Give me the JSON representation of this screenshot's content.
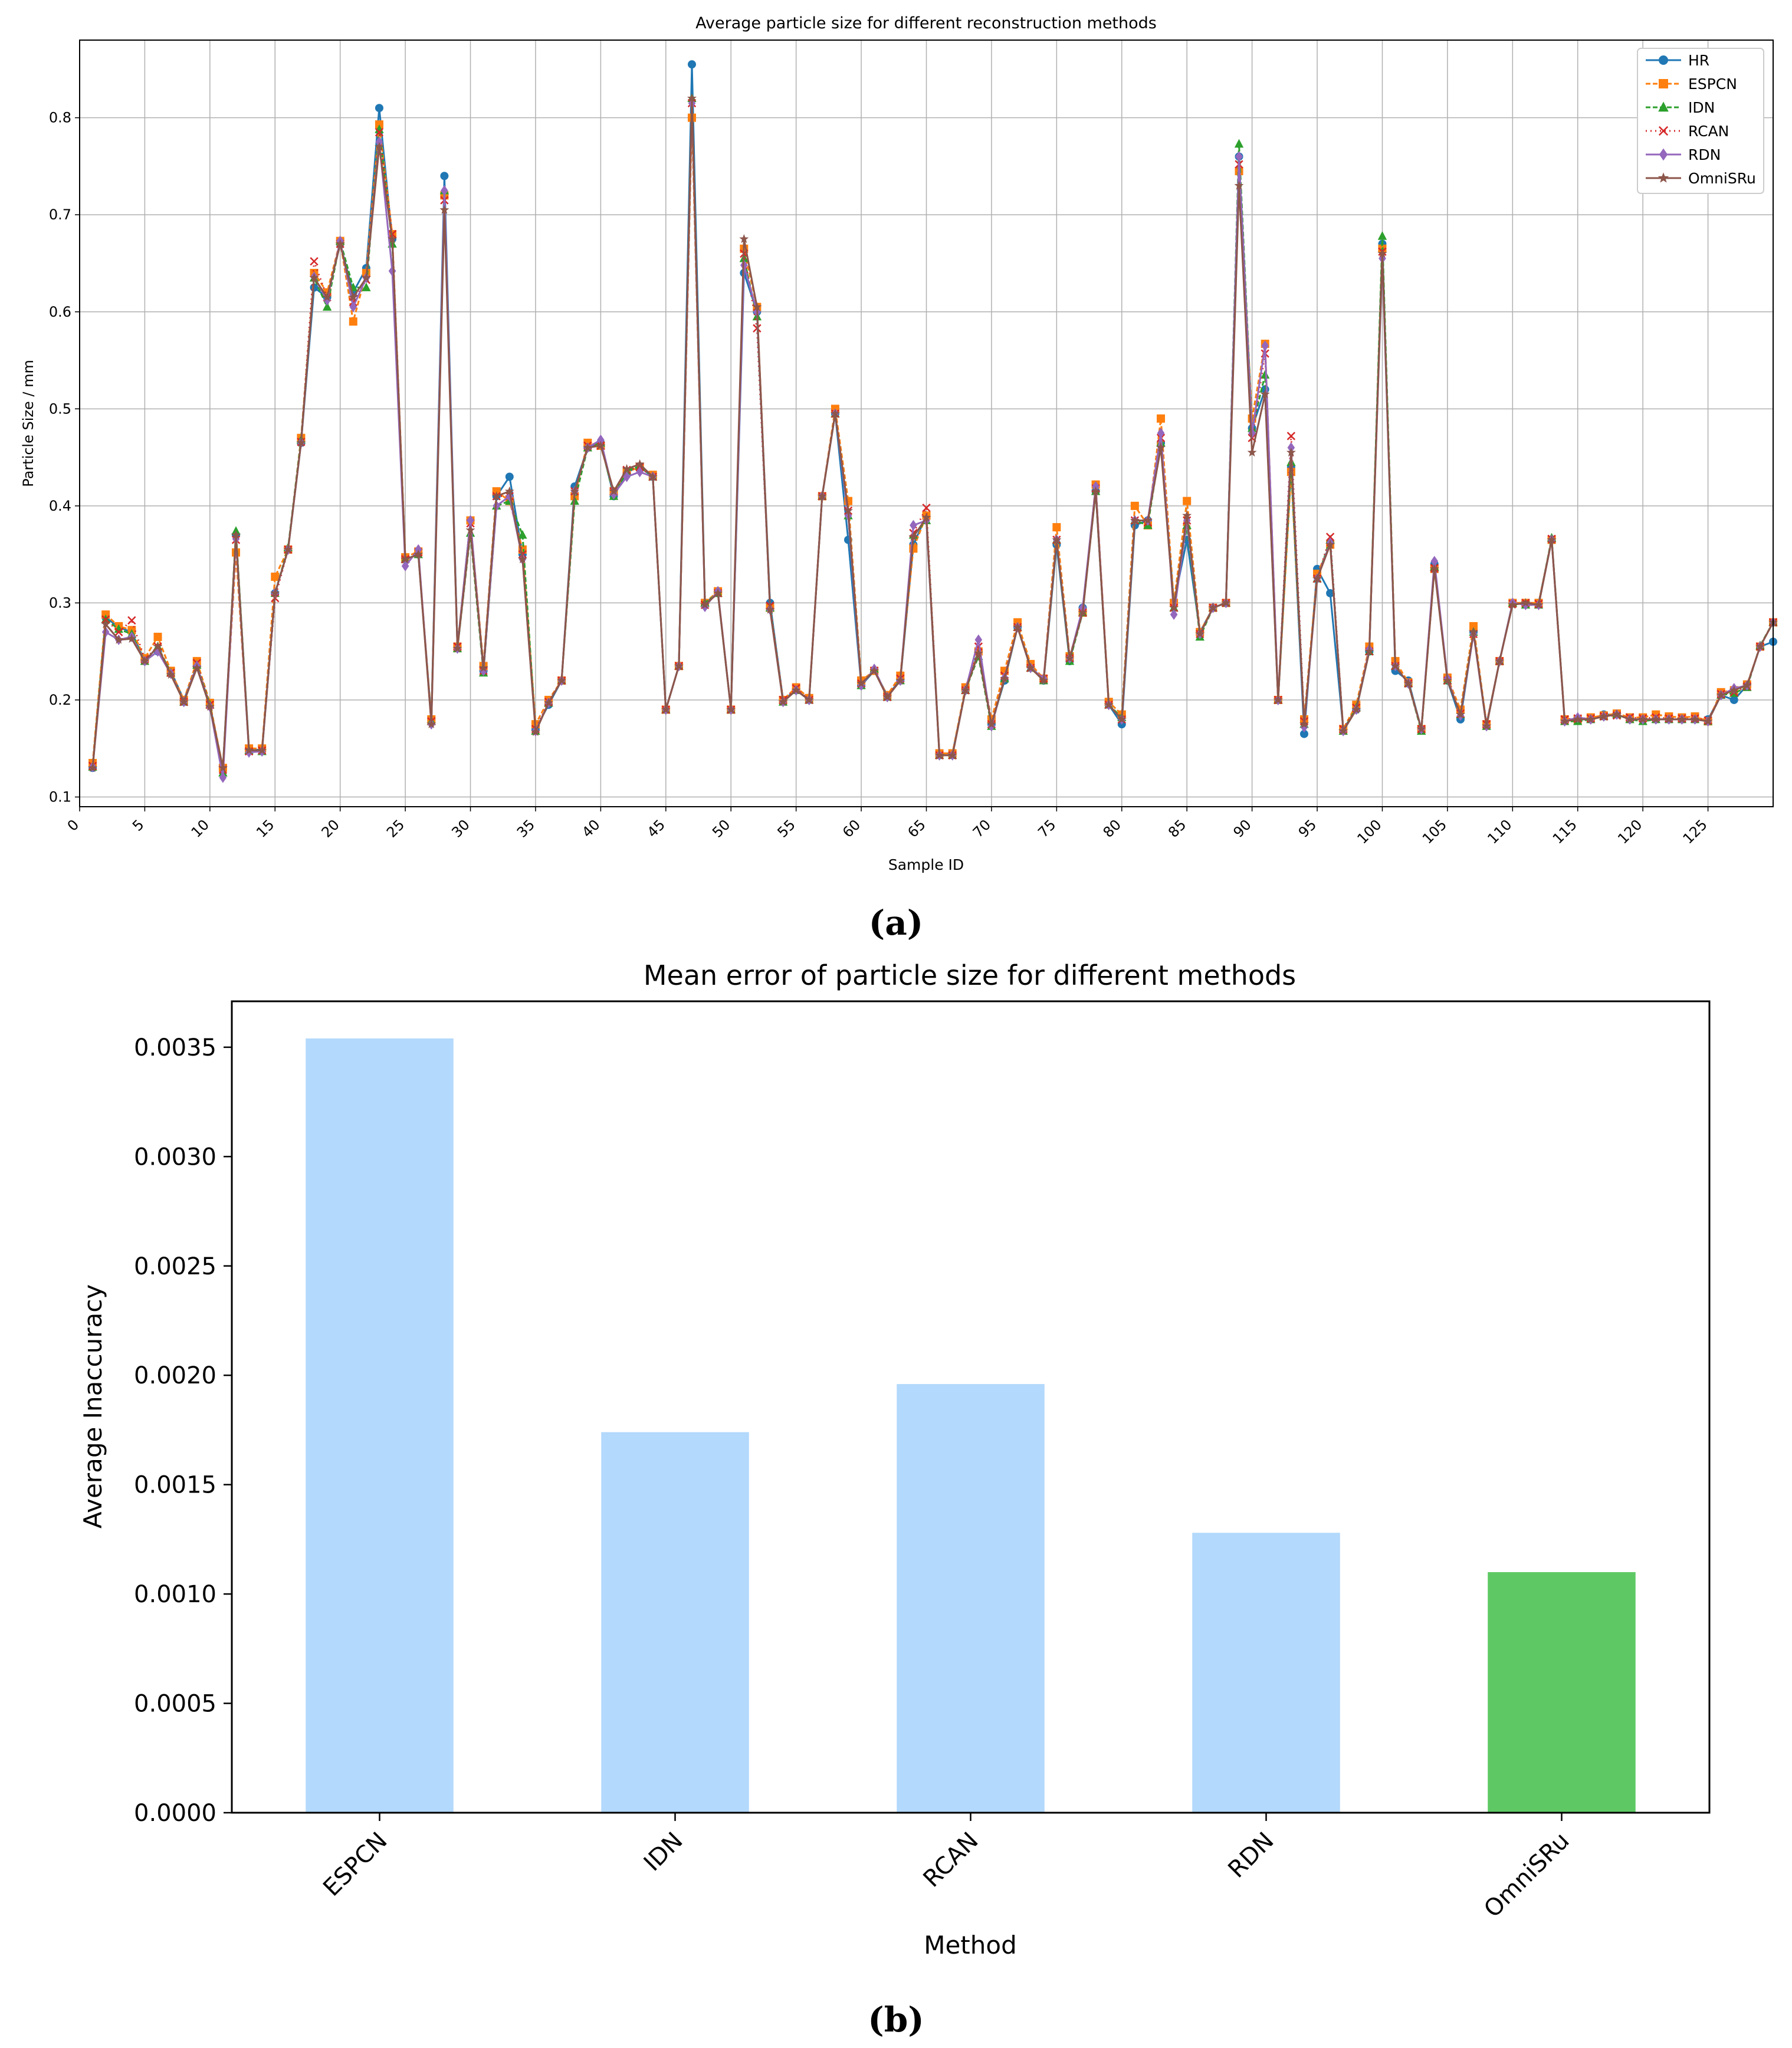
{
  "chart_data": [
    {
      "type": "line",
      "title": "Average particle size for different reconstruction methods",
      "xlabel": "Sample ID",
      "ylabel": "Particle Size / mm",
      "xlim": [
        0,
        130
      ],
      "ylim": [
        0.09,
        0.88
      ],
      "xticks": [
        0,
        5,
        10,
        15,
        20,
        25,
        30,
        35,
        40,
        45,
        50,
        55,
        60,
        65,
        70,
        75,
        80,
        85,
        90,
        95,
        100,
        105,
        110,
        115,
        120,
        125
      ],
      "yticks": [
        0.1,
        0.2,
        0.3,
        0.4,
        0.5,
        0.6,
        0.7,
        0.8
      ],
      "grid": true,
      "legend_position": "top-right",
      "x": [
        1,
        2,
        3,
        4,
        5,
        6,
        7,
        8,
        9,
        10,
        11,
        12,
        13,
        14,
        15,
        16,
        17,
        18,
        19,
        20,
        21,
        22,
        23,
        24,
        25,
        26,
        27,
        28,
        29,
        30,
        31,
        32,
        33,
        34,
        35,
        36,
        37,
        38,
        39,
        40,
        41,
        42,
        43,
        44,
        45,
        46,
        47,
        48,
        49,
        50,
        51,
        52,
        53,
        54,
        55,
        56,
        57,
        58,
        59,
        60,
        61,
        62,
        63,
        64,
        65,
        66,
        67,
        68,
        69,
        70,
        71,
        72,
        73,
        74,
        75,
        76,
        77,
        78,
        79,
        80,
        81,
        82,
        83,
        84,
        85,
        86,
        87,
        88,
        89,
        90,
        91,
        92,
        93,
        94,
        95,
        96,
        97,
        98,
        99,
        100,
        101,
        102,
        103,
        104,
        105,
        106,
        107,
        108,
        109,
        110,
        111,
        112,
        113,
        114,
        115,
        116,
        117,
        118,
        119,
        120,
        121,
        122,
        123,
        124,
        125,
        126,
        127,
        128,
        129,
        130
      ],
      "series": [
        {
          "name": "HR",
          "color": "#1f77b4",
          "marker": "circle",
          "dash": "solid",
          "values": [
            0.13,
            0.285,
            0.275,
            0.27,
            0.24,
            0.25,
            0.23,
            0.2,
            0.235,
            0.195,
            0.13,
            0.37,
            0.15,
            0.148,
            0.31,
            0.355,
            0.465,
            0.625,
            0.615,
            0.67,
            0.62,
            0.645,
            0.81,
            0.675,
            0.345,
            0.35,
            0.18,
            0.74,
            0.255,
            0.385,
            0.23,
            0.41,
            0.43,
            0.35,
            0.17,
            0.195,
            0.22,
            0.42,
            0.46,
            0.465,
            0.41,
            0.435,
            0.44,
            0.43,
            0.19,
            0.235,
            0.855,
            0.3,
            0.31,
            0.19,
            0.64,
            0.6,
            0.3,
            0.2,
            0.21,
            0.2,
            0.41,
            0.495,
            0.365,
            0.215,
            0.23,
            0.205,
            0.22,
            0.36,
            0.39,
            0.145,
            0.145,
            0.21,
            0.25,
            0.175,
            0.22,
            0.275,
            0.235,
            0.22,
            0.36,
            0.24,
            0.295,
            0.415,
            0.195,
            0.175,
            0.38,
            0.385,
            0.465,
            0.3,
            0.365,
            0.27,
            0.295,
            0.3,
            0.76,
            0.48,
            0.52,
            0.2,
            0.44,
            0.165,
            0.335,
            0.31,
            0.17,
            0.19,
            0.25,
            0.67,
            0.23,
            0.22,
            0.17,
            0.34,
            0.22,
            0.18,
            0.27,
            0.175,
            0.24,
            0.3,
            0.3,
            0.3,
            0.365,
            0.18,
            0.18,
            0.18,
            0.185,
            0.185,
            0.18,
            0.18,
            0.18,
            0.18,
            0.18,
            0.18,
            0.18,
            0.205,
            0.2,
            0.215,
            0.255,
            0.26
          ]
        },
        {
          "name": "ESPCN",
          "color": "#ff7f0e",
          "marker": "square",
          "dash": "8,4",
          "values": [
            0.135,
            0.288,
            0.276,
            0.272,
            0.243,
            0.265,
            0.23,
            0.2,
            0.24,
            0.197,
            0.13,
            0.352,
            0.15,
            0.15,
            0.327,
            0.355,
            0.47,
            0.64,
            0.62,
            0.673,
            0.59,
            0.64,
            0.793,
            0.68,
            0.347,
            0.353,
            0.18,
            0.72,
            0.255,
            0.385,
            0.235,
            0.415,
            0.405,
            0.355,
            0.175,
            0.2,
            0.22,
            0.41,
            0.465,
            0.462,
            0.415,
            0.435,
            0.44,
            0.432,
            0.19,
            0.235,
            0.8,
            0.3,
            0.312,
            0.19,
            0.665,
            0.605,
            0.295,
            0.2,
            0.213,
            0.202,
            0.41,
            0.5,
            0.405,
            0.22,
            0.23,
            0.205,
            0.225,
            0.356,
            0.39,
            0.145,
            0.145,
            0.213,
            0.25,
            0.18,
            0.23,
            0.28,
            0.237,
            0.222,
            0.378,
            0.245,
            0.29,
            0.422,
            0.198,
            0.185,
            0.4,
            0.38,
            0.49,
            0.3,
            0.405,
            0.27,
            0.295,
            0.3,
            0.745,
            0.49,
            0.567,
            0.2,
            0.435,
            0.18,
            0.33,
            0.36,
            0.17,
            0.195,
            0.255,
            0.665,
            0.24,
            0.218,
            0.17,
            0.335,
            0.223,
            0.19,
            0.276,
            0.175,
            0.24,
            0.3,
            0.3,
            0.3,
            0.365,
            0.18,
            0.18,
            0.182,
            0.184,
            0.186,
            0.182,
            0.182,
            0.185,
            0.183,
            0.182,
            0.183,
            0.178,
            0.208,
            0.21,
            0.216,
            0.255,
            0.28
          ]
        },
        {
          "name": "IDN",
          "color": "#2ca02c",
          "marker": "triangle",
          "dash": "8,4",
          "values": [
            0.131,
            0.283,
            0.273,
            0.268,
            0.24,
            0.255,
            0.228,
            0.198,
            0.236,
            0.195,
            0.125,
            0.374,
            0.148,
            0.147,
            0.31,
            0.357,
            0.468,
            0.635,
            0.605,
            0.673,
            0.625,
            0.625,
            0.788,
            0.67,
            0.345,
            0.35,
            0.178,
            0.725,
            0.253,
            0.372,
            0.228,
            0.4,
            0.405,
            0.37,
            0.168,
            0.197,
            0.22,
            0.405,
            0.46,
            0.465,
            0.41,
            0.436,
            0.441,
            0.43,
            0.19,
            0.235,
            0.82,
            0.3,
            0.31,
            0.19,
            0.655,
            0.595,
            0.295,
            0.198,
            0.21,
            0.2,
            0.41,
            0.495,
            0.39,
            0.215,
            0.232,
            0.203,
            0.22,
            0.37,
            0.385,
            0.143,
            0.143,
            0.21,
            0.245,
            0.173,
            0.222,
            0.275,
            0.233,
            0.22,
            0.365,
            0.24,
            0.29,
            0.415,
            0.195,
            0.182,
            0.385,
            0.38,
            0.465,
            0.295,
            0.38,
            0.265,
            0.295,
            0.3,
            0.773,
            0.48,
            0.535,
            0.2,
            0.445,
            0.175,
            0.325,
            0.365,
            0.168,
            0.192,
            0.25,
            0.678,
            0.235,
            0.217,
            0.168,
            0.337,
            0.22,
            0.185,
            0.27,
            0.173,
            0.24,
            0.3,
            0.298,
            0.298,
            0.367,
            0.178,
            0.178,
            0.18,
            0.183,
            0.185,
            0.18,
            0.178,
            0.18,
            0.18,
            0.18,
            0.18,
            0.178,
            0.205,
            0.207,
            0.213,
            0.256,
            0.28
          ]
        },
        {
          "name": "RCAN",
          "color": "#d62728",
          "marker": "x",
          "dash": "2,6",
          "values": [
            0.132,
            0.283,
            0.27,
            0.282,
            0.242,
            0.255,
            0.228,
            0.198,
            0.238,
            0.195,
            0.128,
            0.365,
            0.147,
            0.148,
            0.305,
            0.355,
            0.466,
            0.652,
            0.615,
            0.67,
            0.61,
            0.633,
            0.785,
            0.68,
            0.345,
            0.352,
            0.178,
            0.715,
            0.255,
            0.382,
            0.23,
            0.41,
            0.41,
            0.35,
            0.17,
            0.198,
            0.22,
            0.415,
            0.462,
            0.462,
            0.415,
            0.437,
            0.44,
            0.43,
            0.19,
            0.235,
            0.815,
            0.298,
            0.31,
            0.19,
            0.66,
            0.583,
            0.297,
            0.2,
            0.212,
            0.2,
            0.41,
            0.495,
            0.395,
            0.217,
            0.23,
            0.203,
            0.222,
            0.372,
            0.398,
            0.143,
            0.143,
            0.21,
            0.255,
            0.175,
            0.225,
            0.275,
            0.233,
            0.222,
            0.365,
            0.243,
            0.29,
            0.418,
            0.195,
            0.18,
            0.385,
            0.383,
            0.47,
            0.295,
            0.385,
            0.268,
            0.295,
            0.3,
            0.752,
            0.47,
            0.557,
            0.2,
            0.472,
            0.178,
            0.325,
            0.368,
            0.17,
            0.192,
            0.25,
            0.662,
            0.235,
            0.217,
            0.17,
            0.336,
            0.22,
            0.186,
            0.268,
            0.175,
            0.24,
            0.299,
            0.3,
            0.299,
            0.366,
            0.18,
            0.181,
            0.181,
            0.183,
            0.184,
            0.182,
            0.181,
            0.182,
            0.181,
            0.181,
            0.181,
            0.179,
            0.206,
            0.208,
            0.214,
            0.255,
            0.28
          ]
        },
        {
          "name": "RDN",
          "color": "#9467bd",
          "marker": "diamond",
          "dash": "solid",
          "values": [
            0.131,
            0.27,
            0.262,
            0.265,
            0.24,
            0.25,
            0.227,
            0.198,
            0.235,
            0.193,
            0.12,
            0.366,
            0.146,
            0.147,
            0.31,
            0.355,
            0.465,
            0.636,
            0.612,
            0.673,
            0.605,
            0.635,
            0.775,
            0.642,
            0.338,
            0.355,
            0.175,
            0.725,
            0.253,
            0.385,
            0.23,
            0.4,
            0.41,
            0.345,
            0.168,
            0.197,
            0.22,
            0.415,
            0.46,
            0.468,
            0.412,
            0.43,
            0.435,
            0.43,
            0.19,
            0.235,
            0.815,
            0.296,
            0.312,
            0.19,
            0.648,
            0.6,
            0.293,
            0.198,
            0.21,
            0.2,
            0.41,
            0.495,
            0.39,
            0.215,
            0.232,
            0.203,
            0.22,
            0.38,
            0.385,
            0.143,
            0.143,
            0.21,
            0.262,
            0.173,
            0.223,
            0.275,
            0.233,
            0.222,
            0.365,
            0.243,
            0.295,
            0.42,
            0.195,
            0.18,
            0.385,
            0.385,
            0.475,
            0.288,
            0.385,
            0.268,
            0.295,
            0.3,
            0.76,
            0.475,
            0.565,
            0.2,
            0.46,
            0.172,
            0.325,
            0.362,
            0.168,
            0.19,
            0.252,
            0.655,
            0.235,
            0.217,
            0.17,
            0.343,
            0.222,
            0.184,
            0.268,
            0.173,
            0.24,
            0.3,
            0.298,
            0.298,
            0.365,
            0.178,
            0.182,
            0.18,
            0.183,
            0.185,
            0.18,
            0.18,
            0.18,
            0.18,
            0.18,
            0.18,
            0.178,
            0.205,
            0.212,
            0.215,
            0.255,
            0.28
          ]
        },
        {
          "name": "OmniSRu",
          "color": "#8c564b",
          "marker": "star",
          "dash": "solid",
          "values": [
            0.13,
            0.278,
            0.262,
            0.263,
            0.24,
            0.255,
            0.226,
            0.198,
            0.233,
            0.193,
            0.13,
            0.37,
            0.148,
            0.148,
            0.31,
            0.355,
            0.465,
            0.635,
            0.615,
            0.67,
            0.615,
            0.635,
            0.77,
            0.675,
            0.345,
            0.35,
            0.175,
            0.705,
            0.253,
            0.375,
            0.233,
            0.41,
            0.415,
            0.345,
            0.167,
            0.197,
            0.22,
            0.415,
            0.46,
            0.462,
            0.415,
            0.438,
            0.443,
            0.43,
            0.19,
            0.235,
            0.82,
            0.298,
            0.31,
            0.19,
            0.675,
            0.605,
            0.293,
            0.198,
            0.21,
            0.2,
            0.41,
            0.495,
            0.395,
            0.217,
            0.23,
            0.203,
            0.22,
            0.368,
            0.388,
            0.143,
            0.143,
            0.21,
            0.248,
            0.175,
            0.222,
            0.275,
            0.233,
            0.22,
            0.365,
            0.243,
            0.29,
            0.415,
            0.195,
            0.18,
            0.385,
            0.385,
            0.46,
            0.295,
            0.39,
            0.268,
            0.295,
            0.3,
            0.73,
            0.455,
            0.515,
            0.2,
            0.455,
            0.175,
            0.325,
            0.36,
            0.168,
            0.19,
            0.25,
            0.66,
            0.235,
            0.217,
            0.17,
            0.335,
            0.22,
            0.185,
            0.27,
            0.173,
            0.24,
            0.298,
            0.3,
            0.298,
            0.365,
            0.178,
            0.18,
            0.18,
            0.183,
            0.185,
            0.18,
            0.18,
            0.18,
            0.18,
            0.18,
            0.18,
            0.178,
            0.205,
            0.21,
            0.215,
            0.255,
            0.28
          ]
        }
      ],
      "caption": "(a)"
    },
    {
      "type": "bar",
      "title": "Mean error of particle size for different methods",
      "xlabel": "Method",
      "ylabel": "Average Inaccuracy",
      "categories": [
        "ESPCN",
        "IDN",
        "RCAN",
        "RDN",
        "OmniSRu"
      ],
      "values": [
        0.00354,
        0.00174,
        0.00196,
        0.00128,
        0.0011
      ],
      "colors": [
        "#b3d9fc",
        "#b3d9fc",
        "#b3d9fc",
        "#b3d9fc",
        "#5ec964"
      ],
      "ylim": [
        0,
        0.00371
      ],
      "yticks": [
        "0.0000",
        "0.0005",
        "0.0010",
        "0.0015",
        "0.0020",
        "0.0025",
        "0.0030",
        "0.0035"
      ],
      "grid": false,
      "caption": "(b)"
    }
  ]
}
